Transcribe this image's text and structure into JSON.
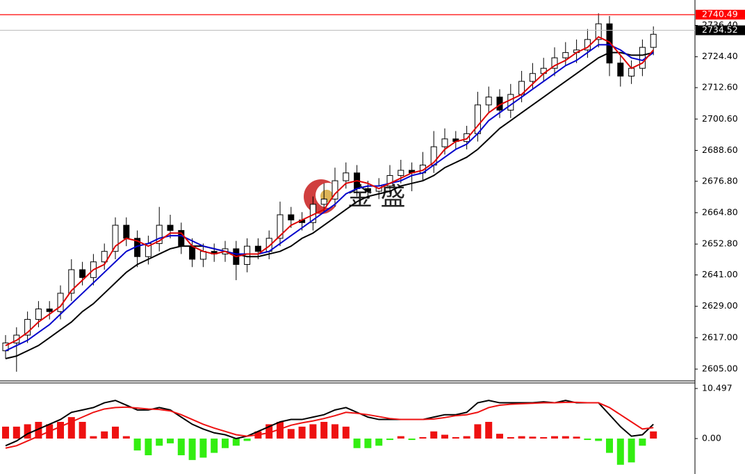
{
  "chart_data": [
    {
      "type": "candlestick",
      "watermark": "金 盛",
      "ylim": [
        2600.5,
        2746.1
      ],
      "yticks": [
        {
          "value": 2605,
          "label": "2605.00"
        },
        {
          "value": 2617,
          "label": "2617.00"
        },
        {
          "value": 2629,
          "label": "2629.00"
        },
        {
          "value": 2641,
          "label": "2641.00"
        },
        {
          "value": 2652.8,
          "label": "2652.80"
        },
        {
          "value": 2664.8,
          "label": "2664.80"
        },
        {
          "value": 2676.8,
          "label": "2676.80"
        },
        {
          "value": 2688.6,
          "label": "2688.60"
        },
        {
          "value": 2700.6,
          "label": "2700.60"
        },
        {
          "value": 2712.6,
          "label": "2712.60"
        },
        {
          "value": 2724.4,
          "label": "2724.40"
        },
        {
          "value": 2736.4,
          "label": "2736.40"
        }
      ],
      "price_lines": [
        {
          "value": 2740.49,
          "color": "#ff0000"
        },
        {
          "value": 2734.52,
          "color": "#000000"
        }
      ],
      "up_color": "#ffffff",
      "down_color": "#000000",
      "open": [
        2612,
        2615,
        2618,
        2624,
        2628,
        2627,
        2634,
        2643,
        2640,
        2646,
        2650,
        2660,
        2655,
        2648,
        2653,
        2660,
        2658,
        2652,
        2647,
        2650,
        2649,
        2651,
        2645,
        2652,
        2650,
        2655,
        2664,
        2662,
        2661,
        2668,
        2670,
        2677,
        2680,
        2674,
        2673,
        2675,
        2679,
        2681,
        2680,
        2683,
        2690,
        2693,
        2692,
        2695,
        2706,
        2709,
        2704,
        2710,
        2715,
        2718,
        2720,
        2724,
        2726,
        2727,
        2731,
        2737,
        2722,
        2717,
        2720,
        2728
      ],
      "high": [
        2618,
        2621,
        2627,
        2631,
        2631,
        2637,
        2647,
        2646,
        2649,
        2653,
        2663,
        2663,
        2658,
        2656,
        2667,
        2664,
        2661,
        2655,
        2653,
        2653,
        2654,
        2654,
        2655,
        2655,
        2658,
        2669,
        2667,
        2665,
        2671,
        2676,
        2682,
        2684,
        2683,
        2677,
        2678,
        2683,
        2685,
        2684,
        2688,
        2696,
        2697,
        2696,
        2698,
        2711,
        2713,
        2712,
        2714,
        2719,
        2722,
        2724,
        2728,
        2730,
        2731,
        2735,
        2741,
        2740,
        2725,
        2723,
        2731,
        2736
      ],
      "low": [
        2609,
        2604,
        2615,
        2621,
        2624,
        2624,
        2631,
        2637,
        2637,
        2643,
        2647,
        2652,
        2644,
        2645,
        2650,
        2655,
        2649,
        2644,
        2644,
        2646,
        2646,
        2639,
        2642,
        2647,
        2647,
        2652,
        2659,
        2658,
        2658,
        2665,
        2667,
        2674,
        2671,
        2670,
        2670,
        2672,
        2676,
        2673,
        2677,
        2680,
        2687,
        2689,
        2689,
        2692,
        2703,
        2701,
        2701,
        2707,
        2712,
        2715,
        2717,
        2721,
        2722,
        2724,
        2728,
        2717,
        2713,
        2714,
        2717,
        2725
      ],
      "close": [
        2615,
        2618,
        2624,
        2628,
        2627,
        2634,
        2643,
        2640,
        2646,
        2650,
        2660,
        2655,
        2648,
        2653,
        2660,
        2658,
        2652,
        2647,
        2650,
        2649,
        2651,
        2645,
        2652,
        2650,
        2655,
        2664,
        2662,
        2661,
        2668,
        2670,
        2677,
        2680,
        2674,
        2673,
        2675,
        2679,
        2681,
        2680,
        2683,
        2690,
        2693,
        2692,
        2695,
        2706,
        2709,
        2704,
        2710,
        2715,
        2718,
        2720,
        2724,
        2726,
        2727,
        2731,
        2737,
        2722,
        2717,
        2720,
        2728,
        2733
      ],
      "series": [
        {
          "color": "#000000",
          "values": [
            2609,
            2610,
            2612,
            2614,
            2617,
            2620,
            2623,
            2627,
            2630,
            2634,
            2638,
            2642,
            2645,
            2647,
            2649,
            2651,
            2652,
            2652,
            2652,
            2651,
            2650,
            2649,
            2648,
            2648,
            2649,
            2650,
            2652,
            2655,
            2657,
            2660,
            2663,
            2666,
            2669,
            2671,
            2672,
            2673,
            2675,
            2676,
            2677,
            2679,
            2682,
            2684,
            2686,
            2689,
            2693,
            2697,
            2700,
            2703,
            2706,
            2709,
            2712,
            2715,
            2718,
            2721,
            2724,
            2726,
            2726,
            2725,
            2725,
            2726
          ]
        },
        {
          "color": "#0000cc",
          "values": [
            2612,
            2614,
            2616,
            2619,
            2622,
            2626,
            2630,
            2634,
            2638,
            2642,
            2646,
            2650,
            2652,
            2653,
            2655,
            2656,
            2656,
            2654,
            2652,
            2651,
            2650,
            2649,
            2649,
            2649,
            2650,
            2653,
            2656,
            2659,
            2662,
            2665,
            2668,
            2672,
            2674,
            2675,
            2675,
            2676,
            2677,
            2679,
            2680,
            2683,
            2686,
            2689,
            2691,
            2695,
            2700,
            2703,
            2706,
            2709,
            2712,
            2715,
            2718,
            2721,
            2723,
            2726,
            2729,
            2729,
            2727,
            2724,
            2723,
            2726
          ]
        },
        {
          "color": "#dd0000",
          "values": [
            2614,
            2616,
            2619,
            2623,
            2626,
            2629,
            2635,
            2639,
            2643,
            2645,
            2652,
            2655,
            2654,
            2652,
            2654,
            2657,
            2657,
            2652,
            2650,
            2649,
            2650,
            2648,
            2649,
            2649,
            2652,
            2656,
            2660,
            2662,
            2664,
            2666,
            2672,
            2676,
            2677,
            2676,
            2674,
            2676,
            2678,
            2680,
            2681,
            2684,
            2689,
            2692,
            2693,
            2698,
            2703,
            2706,
            2708,
            2710,
            2714,
            2718,
            2721,
            2723,
            2726,
            2728,
            2732,
            2730,
            2725,
            2720,
            2722,
            2727
          ]
        }
      ]
    },
    {
      "type": "macd",
      "ylim": [
        -7.14,
        11.66
      ],
      "yticks": [
        10.497,
        {
          "value": 0,
          "label": "0.00"
        }
      ],
      "up_color": "#ee1111",
      "down_color": "#33ee11",
      "histogram": [
        2.5,
        2.5,
        3,
        3.5,
        3,
        3.5,
        4.5,
        3.5,
        0.5,
        1.5,
        2.5,
        0.5,
        -2.5,
        -3.5,
        -1.5,
        -1,
        -3.5,
        -4.5,
        -4,
        -3,
        -2,
        -1.5,
        -0.5,
        1.5,
        3,
        3.5,
        2,
        2.5,
        3,
        3.5,
        3,
        2.5,
        -2,
        -2,
        -1.5,
        -0.3,
        0.5,
        -0.3,
        0.3,
        1.5,
        0.8,
        0.3,
        0.5,
        3,
        3.5,
        1,
        0.3,
        0.5,
        0.4,
        0.3,
        0.5,
        0.5,
        0.4,
        -0.3,
        -0.5,
        -3,
        -5.5,
        -5,
        -1.5,
        1.5
      ],
      "series": [
        {
          "color": "#000000",
          "values": [
            -1.5,
            -0.5,
            1,
            2,
            3,
            4,
            5.5,
            6,
            6.5,
            7.5,
            8,
            7,
            6,
            6,
            6.5,
            6,
            4.5,
            3,
            2,
            1.2,
            0.8,
            0,
            0.5,
            1.5,
            2.5,
            3.5,
            4,
            4,
            4.5,
            5,
            6,
            6.5,
            5.5,
            4.5,
            4,
            4,
            4,
            4,
            4,
            4.5,
            5,
            5,
            5.5,
            7.5,
            8,
            7.5,
            7.5,
            7.5,
            7.5,
            7.7,
            7.5,
            8,
            7.5,
            7.5,
            7.5,
            5,
            2.5,
            0.5,
            0.8,
            3
          ]
        },
        {
          "color": "#ee1111",
          "values": [
            -2,
            -1.5,
            -0.5,
            0.5,
            1.5,
            2.5,
            3.5,
            4.5,
            5.5,
            6.2,
            6.5,
            6.6,
            6.4,
            6.2,
            6.1,
            5.8,
            5,
            4,
            3,
            2.2,
            1.5,
            0.8,
            0.5,
            0.8,
            1.2,
            2,
            2.8,
            3.3,
            3.7,
            4.2,
            4.8,
            5.5,
            5.3,
            5,
            4.6,
            4.2,
            4,
            4,
            4,
            4.1,
            4.4,
            4.8,
            5,
            5.5,
            6.5,
            7,
            7.2,
            7.3,
            7.4,
            7.5,
            7.5,
            7.6,
            7.6,
            7.5,
            7.5,
            6.5,
            5,
            3.5,
            2,
            2.3
          ]
        }
      ]
    }
  ]
}
